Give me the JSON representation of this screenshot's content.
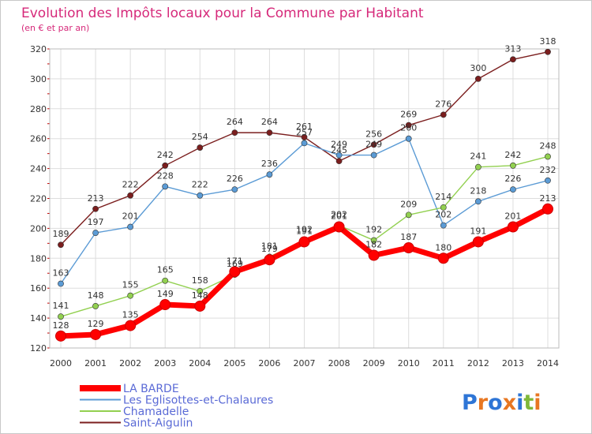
{
  "chart_data": {
    "type": "line",
    "title": "Evolution des Impôts locaux pour la Commune par Habitant",
    "subtitle": "(en € et par an)",
    "xlabel": "",
    "ylabel": "",
    "categories": [
      "2000",
      "2001",
      "2002",
      "2003",
      "2004",
      "2005",
      "2006",
      "2007",
      "2008",
      "2009",
      "2010",
      "2011",
      "2012",
      "2013",
      "2014"
    ],
    "ylim": [
      120,
      320
    ],
    "yticks": [
      120,
      140,
      160,
      180,
      200,
      220,
      240,
      260,
      280,
      300,
      320
    ],
    "grid": true,
    "legend_position": "bottom-left",
    "series": [
      {
        "name": "LA BARDE",
        "color": "#ff0000",
        "values": [
          128,
          129,
          135,
          149,
          148,
          171,
          179,
          191,
          201,
          182,
          187,
          180,
          191,
          201,
          213
        ],
        "labels": [
          "128",
          "129",
          "135",
          "149",
          "148",
          "171",
          "179",
          "191",
          "201",
          "182",
          "187",
          "180",
          "191",
          "201",
          "213"
        ]
      },
      {
        "name": "Les Eglisottes-et-Chalaures",
        "color": "#5b9bd5",
        "values": [
          163,
          197,
          201,
          228,
          222,
          226,
          236,
          257,
          249,
          249,
          260,
          202,
          218,
          226,
          232
        ],
        "labels": [
          "163",
          "197",
          "201",
          "228",
          "222",
          "226",
          "236",
          "257",
          "249",
          "249",
          "260",
          "202",
          "218",
          "226",
          "232"
        ]
      },
      {
        "name": "Chamadelle",
        "color": "#92d050",
        "values": [
          141,
          148,
          155,
          165,
          158,
          169,
          181,
          192,
          202,
          192,
          209,
          214,
          241,
          242,
          248
        ],
        "labels": [
          "141",
          "148",
          "155",
          "165",
          "158",
          "169",
          "181",
          "192",
          "202",
          "192",
          "209",
          "214",
          "241",
          "242",
          "248"
        ]
      },
      {
        "name": "Saint-Aigulin",
        "color": "#7b1e1e",
        "values": [
          189,
          213,
          222,
          242,
          254,
          264,
          264,
          261,
          245,
          256,
          269,
          276,
          300,
          313,
          318
        ],
        "labels": [
          "189",
          "213",
          "222",
          "242",
          "254",
          "264",
          "264",
          "261",
          "245",
          "256",
          "269",
          "276",
          "300",
          "313",
          "318"
        ]
      }
    ]
  },
  "colors": {
    "title": "#d6297a",
    "legend_text": "#5a6ad6",
    "axis_text": "#333333",
    "grid": "#dddddd",
    "minor_tick": "#c00000"
  },
  "logo": {
    "text": "Proxiti",
    "letters": [
      "P",
      "r",
      "o",
      "x",
      "i",
      "t",
      "i"
    ],
    "letter_colors": [
      "#2e75d6",
      "#e87722",
      "#2e75d6",
      "#e87722",
      "#2e75d6",
      "#7fb83a",
      "#e87722"
    ]
  }
}
